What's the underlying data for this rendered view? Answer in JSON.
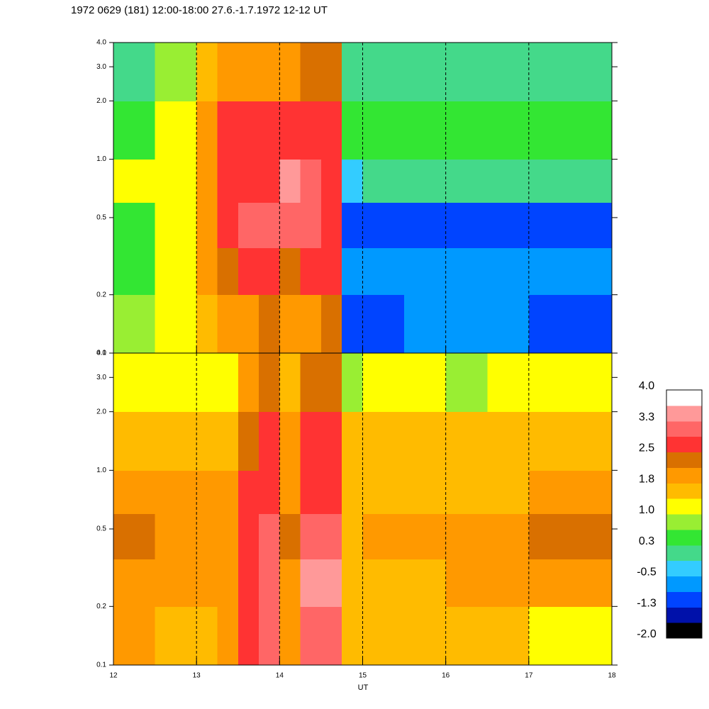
{
  "chart_data": [
    {
      "type": "heatmap",
      "title": "1972 0629 (181) 12:00-18:00 27.6.-1.7.1972  12-12 UT",
      "x_edges": [
        12,
        12.5,
        13,
        13.25,
        13.5,
        13.75,
        14,
        14.25,
        14.5,
        14.75,
        15,
        15.5,
        16,
        16.5,
        17,
        17.5,
        18
      ],
      "y_edges": [
        0.1,
        0.2,
        0.35,
        0.6,
        1.0,
        2.0,
        4.0
      ],
      "values": [
        [
          0.8,
          1.2,
          1.5,
          1.8,
          2.0,
          2.4,
          1.8,
          2.0,
          2.2,
          -0.9,
          -0.9,
          -0.8,
          -0.8,
          -0.8,
          -0.9,
          -0.9
        ],
        [
          0.6,
          1.0,
          1.8,
          2.2,
          2.5,
          2.8,
          2.2,
          2.6,
          2.7,
          -0.6,
          -0.6,
          -0.7,
          -0.6,
          -0.6,
          -0.6,
          -0.7
        ],
        [
          0.4,
          1.0,
          2.0,
          2.8,
          3.0,
          3.0,
          3.2,
          3.0,
          2.8,
          -1.2,
          -1.0,
          -1.1,
          -1.2,
          -1.0,
          -1.1,
          -1.0
        ],
        [
          1.2,
          1.2,
          1.8,
          2.6,
          2.8,
          2.8,
          3.4,
          3.0,
          2.6,
          -0.2,
          0.0,
          0.0,
          0.1,
          0.0,
          0.1,
          0.1
        ],
        [
          0.6,
          1.0,
          2.0,
          2.6,
          2.8,
          2.8,
          2.6,
          2.8,
          2.8,
          0.3,
          0.4,
          0.4,
          0.3,
          0.5,
          0.4,
          0.5
        ],
        [
          0.0,
          0.8,
          1.5,
          1.8,
          2.0,
          2.0,
          2.0,
          2.2,
          2.2,
          0.0,
          0.0,
          0.1,
          0.0,
          0.1,
          0.2,
          0.1
        ]
      ],
      "xlim": [
        12,
        18
      ],
      "xticks": [
        12,
        13,
        14,
        15,
        16,
        17,
        18
      ],
      "ylim": [
        0.1,
        4.0
      ],
      "log_y": true,
      "yticks": [
        0.1,
        0.2,
        0.5,
        {
          "value": 1,
          "label": "1.0"
        },
        {
          "value": 2,
          "label": "2.0"
        },
        {
          "value": 3,
          "label": "3.0"
        },
        {
          "value": 4,
          "label": "4.0"
        }
      ],
      "grid": true
    },
    {
      "type": "heatmap",
      "xlabel": "UT",
      "x_edges": [
        12,
        12.5,
        13,
        13.25,
        13.5,
        13.75,
        14,
        14.25,
        14.5,
        14.75,
        15,
        15.5,
        16,
        16.5,
        17,
        17.5,
        18
      ],
      "y_edges": [
        0.1,
        0.2,
        0.35,
        0.6,
        1.0,
        2.0,
        4.0
      ],
      "values": [
        [
          1.8,
          1.6,
          1.7,
          1.8,
          2.8,
          3.0,
          1.8,
          2.9,
          3.0,
          1.5,
          1.4,
          1.5,
          1.7,
          1.5,
          1.2,
          1.3
        ],
        [
          2.0,
          1.9,
          1.9,
          2.0,
          2.8,
          3.2,
          2.0,
          3.3,
          3.4,
          1.6,
          1.7,
          1.7,
          2.1,
          2.0,
          1.9,
          1.8
        ],
        [
          2.2,
          2.0,
          2.0,
          2.1,
          2.8,
          3.0,
          2.2,
          3.0,
          3.0,
          1.7,
          1.8,
          1.9,
          2.1,
          2.1,
          2.2,
          2.2
        ],
        [
          1.9,
          1.8,
          1.8,
          1.9,
          2.6,
          2.8,
          2.0,
          2.8,
          2.8,
          1.6,
          1.7,
          1.6,
          1.7,
          1.6,
          1.9,
          2.1
        ],
        [
          1.5,
          1.5,
          1.5,
          1.6,
          2.4,
          2.6,
          1.8,
          2.5,
          2.6,
          1.4,
          1.5,
          1.5,
          1.4,
          1.5,
          1.5,
          1.6
        ],
        [
          1.0,
          1.1,
          1.1,
          1.2,
          2.0,
          2.2,
          1.4,
          2.2,
          2.4,
          0.9,
          1.0,
          1.0,
          0.9,
          1.0,
          1.0,
          1.2
        ]
      ],
      "xlim": [
        12,
        18
      ],
      "xticks": [
        12,
        13,
        14,
        15,
        16,
        17,
        18
      ],
      "ylim": [
        0.1,
        4.0
      ],
      "log_y": true,
      "yticks": [
        0.1,
        0.2,
        0.5,
        {
          "value": 1,
          "label": "1.0"
        },
        {
          "value": 2,
          "label": "2.0"
        },
        {
          "value": 3,
          "label": "3.0"
        },
        {
          "value": 4,
          "label": "4.0"
        }
      ],
      "grid": true,
      "colorbar": {
        "lim": [
          -2.0,
          4.0
        ],
        "colors": [
          "#000000",
          "#0011aa",
          "#0044ff",
          "#0099ff",
          "#33ccff",
          "#44d98a",
          "#33e633",
          "#99ee33",
          "#ffff00",
          "#ffbb00",
          "#ff9900",
          "#d97000",
          "#ff3333",
          "#ff6666",
          "#ff9999",
          "#ffffff"
        ],
        "ticks": [
          {
            "value": 4,
            "label": "4.0"
          },
          {
            "value": 3.25,
            "label": "3.3"
          },
          2.5,
          {
            "value": 1.75,
            "label": "1.8"
          },
          {
            "value": 1,
            "label": "1.0"
          },
          {
            "value": 0.25,
            "label": "0.3"
          },
          -0.5,
          {
            "value": -1.25,
            "label": "-1.3"
          },
          {
            "value": -2,
            "label": "-2.0"
          }
        ]
      }
    }
  ]
}
